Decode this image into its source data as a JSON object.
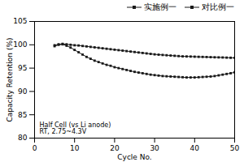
{
  "chart_data": {
    "type": "line",
    "xlabel": "Cycle No.",
    "ylabel": "Capacity Retention (%)",
    "xlim": [
      0,
      50
    ],
    "ylim": [
      80,
      105
    ],
    "xticks": [
      0,
      10,
      20,
      30,
      40,
      50
    ],
    "yticks": [
      80,
      85,
      90,
      95,
      100,
      105
    ],
    "annotations": [
      "Half Cell (vs Li anode)",
      "RT, 2.75~4.3V"
    ],
    "grid": false,
    "legend": "right",
    "marker": "square",
    "line_style": "solid",
    "x": [
      5,
      6,
      7,
      8,
      9,
      10,
      11,
      12,
      13,
      14,
      15,
      16,
      17,
      18,
      19,
      20,
      21,
      22,
      23,
      24,
      25,
      26,
      27,
      28,
      29,
      30,
      31,
      32,
      33,
      34,
      35,
      36,
      37,
      38,
      39,
      40,
      41,
      42,
      43,
      44,
      45,
      46,
      47,
      48,
      49,
      50
    ],
    "series": [
      {
        "name": "实施例一",
        "color": "#1a1a1a",
        "values": [
          99.9,
          100.1,
          100.2,
          100.1,
          100.0,
          99.9,
          99.85,
          99.75,
          99.65,
          99.55,
          99.45,
          99.35,
          99.25,
          99.15,
          99.05,
          98.95,
          98.85,
          98.75,
          98.65,
          98.55,
          98.45,
          98.35,
          98.25,
          98.15,
          98.05,
          97.95,
          97.88,
          97.82,
          97.76,
          97.7,
          97.64,
          97.58,
          97.52,
          97.5,
          97.48,
          97.45,
          97.42,
          97.4,
          97.38,
          97.35,
          97.32,
          97.3,
          97.28,
          97.25,
          97.22,
          97.2
        ]
      },
      {
        "name": "对比例一",
        "color": "#1a1a1a",
        "values": [
          99.7,
          100.0,
          100.1,
          99.8,
          99.4,
          98.9,
          98.4,
          97.9,
          97.4,
          97.0,
          96.6,
          96.3,
          96.0,
          95.7,
          95.5,
          95.2,
          95.0,
          94.8,
          94.6,
          94.4,
          94.2,
          94.05,
          93.9,
          93.75,
          93.6,
          93.5,
          93.4,
          93.3,
          93.25,
          93.2,
          93.15,
          93.1,
          93.05,
          93.0,
          93.0,
          93.0,
          93.05,
          93.1,
          93.15,
          93.2,
          93.3,
          93.45,
          93.6,
          93.75,
          93.9,
          94.1
        ]
      }
    ]
  }
}
